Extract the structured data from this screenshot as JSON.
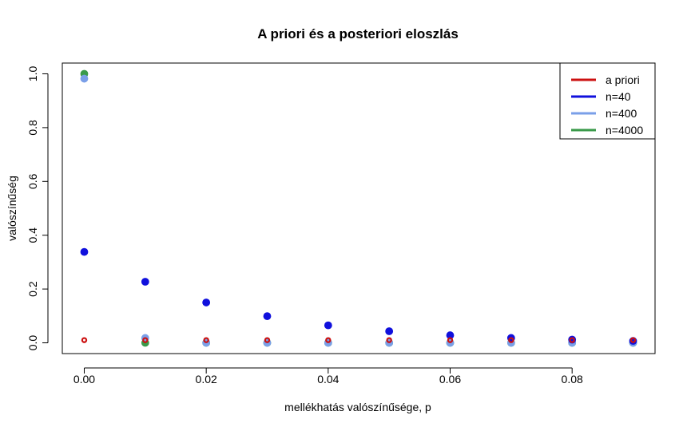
{
  "chart_data": {
    "type": "scatter",
    "title": "A priori és a posteriori eloszlás",
    "xlabel": "mellékhatás valószínűsége, p",
    "ylabel": "valószínűség",
    "xlim": [
      -0.0036,
      0.0936
    ],
    "ylim": [
      -0.04,
      1.04
    ],
    "x": [
      0.0,
      0.01,
      0.02,
      0.03,
      0.04,
      0.05,
      0.06,
      0.07,
      0.08,
      0.09
    ],
    "x_ticks": [
      0.0,
      0.02,
      0.04,
      0.06,
      0.08
    ],
    "x_tick_labels": [
      "0.00",
      "0.02",
      "0.04",
      "0.06",
      "0.08"
    ],
    "y_ticks": [
      0.0,
      0.2,
      0.4,
      0.6,
      0.8,
      1.0
    ],
    "y_tick_labels": [
      "0.0",
      "0.2",
      "0.4",
      "0.6",
      "0.8",
      "1.0"
    ],
    "grid": false,
    "legend_position": "top-right",
    "series": [
      {
        "name": "a priori",
        "color": "#cc1111",
        "marker": "ring",
        "values": [
          0.01,
          0.01,
          0.01,
          0.01,
          0.01,
          0.01,
          0.01,
          0.01,
          0.01,
          0.01
        ]
      },
      {
        "name": "n=40",
        "color": "#1010dd",
        "marker": "dot",
        "values": [
          0.338,
          0.227,
          0.15,
          0.099,
          0.065,
          0.043,
          0.028,
          0.018,
          0.012,
          0.007
        ]
      },
      {
        "name": "n=400",
        "color": "#7a9fe8",
        "marker": "dot",
        "values": [
          0.982,
          0.018,
          0.0,
          0.0,
          0.0,
          0.0,
          0.0,
          0.0,
          0.0,
          0.0
        ]
      },
      {
        "name": "n=4000",
        "color": "#3a9a4a",
        "marker": "dot",
        "values": [
          1.0,
          0.0,
          0.0,
          0.0,
          0.0,
          0.0,
          0.0,
          0.0,
          0.0,
          0.0
        ]
      }
    ]
  }
}
